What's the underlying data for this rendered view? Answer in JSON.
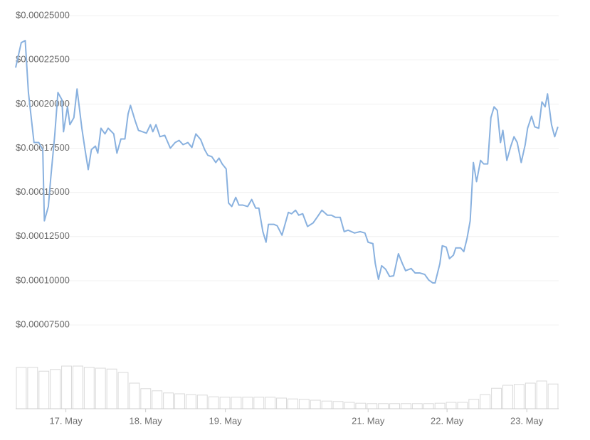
{
  "chart_data": {
    "type": "line",
    "x": [
      16.37,
      16.44,
      16.49,
      16.53,
      16.6,
      16.66,
      16.71,
      16.73,
      16.78,
      16.81,
      16.86,
      16.9,
      16.95,
      16.97,
      17.02,
      17.05,
      17.1,
      17.14,
      17.2,
      17.24,
      17.28,
      17.32,
      17.37,
      17.4,
      17.44,
      17.49,
      17.53,
      17.6,
      17.64,
      17.69,
      17.74,
      17.78,
      17.81,
      17.87,
      17.91,
      17.96,
      18.01,
      18.06,
      18.09,
      18.13,
      18.18,
      18.24,
      18.31,
      18.37,
      18.42,
      18.47,
      18.53,
      18.58,
      18.63,
      18.69,
      18.74,
      18.78,
      18.83,
      18.88,
      18.92,
      18.96,
      19.01,
      19.04,
      19.08,
      19.13,
      19.17,
      19.22,
      19.28,
      19.33,
      19.38,
      19.42,
      19.47,
      19.51,
      19.54,
      19.61,
      19.65,
      19.71,
      19.79,
      19.83,
      19.88,
      19.92,
      19.97,
      20.03,
      20.1,
      20.15,
      20.21,
      20.28,
      20.33,
      20.38,
      20.44,
      20.49,
      20.54,
      20.62,
      20.69,
      20.75,
      20.79,
      20.85,
      20.88,
      20.92,
      20.96,
      21.01,
      21.06,
      21.11,
      21.17,
      21.22,
      21.26,
      21.33,
      21.38,
      21.44,
      21.5,
      21.55,
      21.6,
      21.63,
      21.69,
      21.72,
      21.77,
      21.81,
      21.86,
      21.89,
      21.95,
      21.99,
      22.03,
      22.07,
      22.11,
      22.15,
      22.2,
      22.24,
      22.29,
      22.33,
      22.37,
      22.41,
      22.45,
      22.48,
      22.53,
      22.58,
      22.62,
      22.66,
      22.71,
      22.76,
      22.79,
      22.84,
      22.88,
      22.93,
      22.97,
      23.01,
      23.04,
      23.09,
      23.13,
      23.17
    ],
    "values": [
      0.0002206,
      0.0002347,
      0.0002359,
      0.0002065,
      0.0001782,
      0.0001782,
      0.0001742,
      0.0001339,
      0.000142,
      0.0001581,
      0.0001823,
      0.0002065,
      0.0002024,
      0.0001843,
      0.0001984,
      0.0001883,
      0.0001923,
      0.0002085,
      0.0001863,
      0.0001742,
      0.0001629,
      0.0001742,
      0.0001762,
      0.0001722,
      0.0001863,
      0.0001831,
      0.0001863,
      0.0001831,
      0.0001722,
      0.0001802,
      0.0001802,
      0.0001944,
      0.0001992,
      0.0001903,
      0.0001851,
      0.0001843,
      0.0001835,
      0.0001883,
      0.0001843,
      0.0001883,
      0.0001815,
      0.0001823,
      0.000175,
      0.0001782,
      0.0001794,
      0.000177,
      0.0001782,
      0.0001754,
      0.0001831,
      0.0001799,
      0.0001742,
      0.000171,
      0.0001702,
      0.0001669,
      0.0001694,
      0.0001661,
      0.0001633,
      0.000144,
      0.000142,
      0.0001472,
      0.0001428,
      0.0001428,
      0.000142,
      0.000146,
      0.0001411,
      0.0001411,
      0.0001278,
      0.0001218,
      0.0001319,
      0.0001319,
      0.0001311,
      0.0001258,
      0.0001387,
      0.0001379,
      0.0001399,
      0.0001371,
      0.0001379,
      0.0001307,
      0.0001327,
      0.0001359,
      0.0001399,
      0.0001371,
      0.0001371,
      0.0001359,
      0.0001359,
      0.0001278,
      0.0001286,
      0.000127,
      0.0001278,
      0.000127,
      0.0001218,
      0.000121,
      0.0001097,
      0.0001008,
      0.0001085,
      0.0001065,
      0.0001024,
      0.0001028,
      0.0001153,
      0.0001097,
      0.0001057,
      0.0001069,
      0.0001044,
      0.0001044,
      0.0001036,
      0.0001004,
      9.88e-05,
      9.88e-05,
      0.0001097,
      0.0001198,
      0.000119,
      0.0001125,
      0.0001145,
      0.0001186,
      0.0001186,
      0.0001165,
      0.0001238,
      0.0001339,
      0.0001669,
      0.0001561,
      0.0001681,
      0.0001661,
      0.0001661,
      0.0001923,
      0.0001984,
      0.0001964,
      0.0001782,
      0.0001851,
      0.0001681,
      0.0001762,
      0.0001815,
      0.0001782,
      0.0001669,
      0.000177,
      0.0001863,
      0.0001931,
      0.0001871,
      0.0001863,
      0.0002012,
      0.0001984,
      0.0002057,
      0.0001883,
      0.0001815,
      0.0001871
    ],
    "color": "#89b1df",
    "xlim": [
      16.37,
      23.18
    ],
    "xticks": [
      {
        "value": 17,
        "label": "17. May"
      },
      {
        "value": 18,
        "label": "18. May"
      },
      {
        "value": 19,
        "label": "19. May"
      },
      {
        "value": 20.79,
        "label": "21. May"
      },
      {
        "value": 21.78,
        "label": "22. May"
      },
      {
        "value": 22.78,
        "label": "23. May"
      }
    ],
    "ylim": [
      6.5e-05,
      0.00025
    ],
    "yticks": [
      {
        "value": 0.00025,
        "label": "$0.00025000"
      },
      {
        "value": 0.000225,
        "label": "$0.00022500"
      },
      {
        "value": 0.0002,
        "label": "$0.00020000"
      },
      {
        "value": 0.000175,
        "label": "$0.00017500"
      },
      {
        "value": 0.00015,
        "label": "$0.00015000"
      },
      {
        "value": 0.000125,
        "label": "$0.00012500"
      },
      {
        "value": 0.0001,
        "label": "$0.00010000"
      },
      {
        "value": 7.5e-05,
        "label": "$0.00007500"
      }
    ],
    "grid": true,
    "volume": {
      "color": "#d9d9d9",
      "vlim": [
        0,
        100
      ],
      "values": [
        97,
        97,
        88,
        92,
        100,
        100,
        97,
        95,
        93,
        85,
        60,
        47,
        42,
        37,
        35,
        33,
        32,
        28,
        27,
        27,
        27,
        27,
        27,
        25,
        23,
        22,
        20,
        18,
        17,
        15,
        13,
        12,
        12,
        12,
        12,
        12,
        12,
        13,
        15,
        15,
        22,
        33,
        48,
        55,
        57,
        60,
        65,
        58
      ]
    }
  }
}
